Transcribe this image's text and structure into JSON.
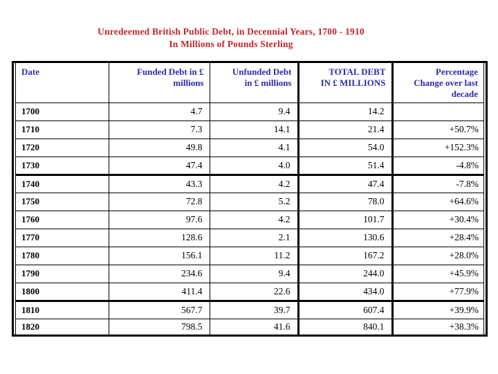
{
  "title": {
    "line1": "Unredeemed British Public Debt, in Decennial Years, 1700 - 1910",
    "line2": "In Millions of Pounds Sterling",
    "color": "#c0262c"
  },
  "table": {
    "header_text_color": "#2a2ab0",
    "border_color": "#000000",
    "columns": [
      {
        "label": "Date"
      },
      {
        "label": "Funded Debt in £\nmillions"
      },
      {
        "label": "Unfunded Debt\nin £ millions"
      },
      {
        "label": "TOTAL DEBT\nIN £ MILLIONS"
      },
      {
        "label": "Percentage\nChange over last\ndecade"
      }
    ],
    "thick_border_after": [
      "1730",
      "1800"
    ],
    "rows": [
      {
        "date": "1700",
        "funded": "4.7",
        "unfunded": "9.4",
        "total": "14.2",
        "pct": ""
      },
      {
        "date": "1710",
        "funded": "7.3",
        "unfunded": "14.1",
        "total": "21.4",
        "pct": "+50.7%"
      },
      {
        "date": "1720",
        "funded": "49.8",
        "unfunded": "4.1",
        "total": "54.0",
        "pct": "+152.3%"
      },
      {
        "date": "1730",
        "funded": "47.4",
        "unfunded": "4.0",
        "total": "51.4",
        "pct": "-4.8%"
      },
      {
        "date": "1740",
        "funded": "43.3",
        "unfunded": "4.2",
        "total": "47.4",
        "pct": "-7.8%"
      },
      {
        "date": "1750",
        "funded": "72.8",
        "unfunded": "5.2",
        "total": "78.0",
        "pct": "+64.6%"
      },
      {
        "date": "1760",
        "funded": "97.6",
        "unfunded": "4.2",
        "total": "101.7",
        "pct": "+30.4%"
      },
      {
        "date": "1770",
        "funded": "128.6",
        "unfunded": "2.1",
        "total": "130.6",
        "pct": "+28.4%"
      },
      {
        "date": "1780",
        "funded": "156.1",
        "unfunded": "11.2",
        "total": "167.2",
        "pct": "+28.0%"
      },
      {
        "date": "1790",
        "funded": "234.6",
        "unfunded": "9.4",
        "total": "244.0",
        "pct": "+45.9%"
      },
      {
        "date": "1800",
        "funded": "411.4",
        "unfunded": "22.6",
        "total": "434.0",
        "pct": "+77.9%"
      },
      {
        "date": "1810",
        "funded": "567.7",
        "unfunded": "39.7",
        "total": "607.4",
        "pct": "+39.9%"
      },
      {
        "date": "1820",
        "funded": "798.5",
        "unfunded": "41.6",
        "total": "840.1",
        "pct": "+38.3%"
      }
    ]
  },
  "chart_data": {
    "type": "table",
    "title": "Unredeemed British Public Debt, in Decennial Years, 1700 - 1910",
    "subtitle": "In Millions of Pounds Sterling",
    "categories": [
      1700,
      1710,
      1720,
      1730,
      1740,
      1750,
      1760,
      1770,
      1780,
      1790,
      1800,
      1810,
      1820
    ],
    "series": [
      {
        "name": "Funded Debt in £ millions",
        "values": [
          4.7,
          7.3,
          49.8,
          47.4,
          43.3,
          72.8,
          97.6,
          128.6,
          156.1,
          234.6,
          411.4,
          567.7,
          798.5
        ]
      },
      {
        "name": "Unfunded Debt in £ millions",
        "values": [
          9.4,
          14.1,
          4.1,
          4.0,
          4.2,
          5.2,
          4.2,
          2.1,
          11.2,
          9.4,
          22.6,
          39.7,
          41.6
        ]
      },
      {
        "name": "Total Debt in £ millions",
        "values": [
          14.2,
          21.4,
          54.0,
          51.4,
          47.4,
          78.0,
          101.7,
          130.6,
          167.2,
          244.0,
          434.0,
          607.4,
          840.1
        ]
      },
      {
        "name": "Percentage change over last decade",
        "values": [
          null,
          50.7,
          152.3,
          -4.8,
          -7.8,
          64.6,
          30.4,
          28.4,
          28.0,
          45.9,
          77.9,
          39.9,
          38.3
        ]
      }
    ]
  }
}
